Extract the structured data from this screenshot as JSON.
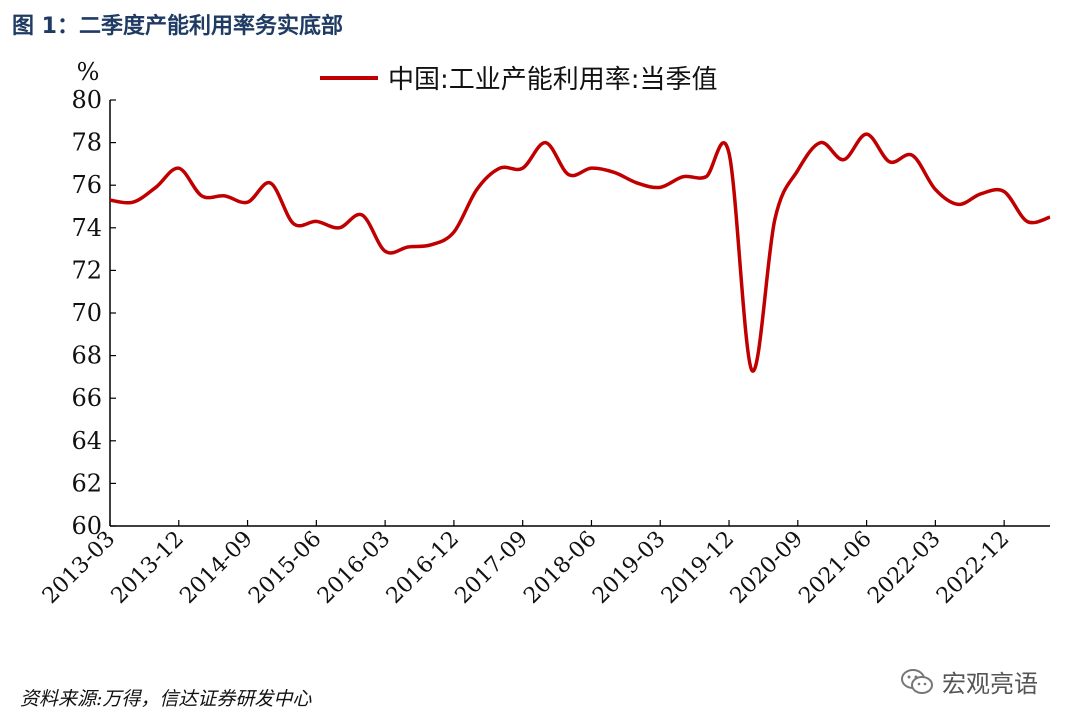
{
  "figure": {
    "title": "图 1：二季度产能利用率务实底部",
    "source": "资料来源:万得，信达证券研发中心",
    "watermark": "宏观亮语",
    "watermark_icon": "wechat-icon"
  },
  "chart_data": {
    "type": "line",
    "title": "",
    "xlabel": "",
    "ylabel": "%",
    "ylim": [
      60,
      80
    ],
    "yticks": [
      60,
      62,
      64,
      66,
      68,
      70,
      72,
      74,
      76,
      78,
      80
    ],
    "x": [
      "2013-03",
      "2013-06",
      "2013-09",
      "2013-12",
      "2014-03",
      "2014-06",
      "2014-09",
      "2014-12",
      "2015-03",
      "2015-06",
      "2015-09",
      "2015-12",
      "2016-03",
      "2016-06",
      "2016-09",
      "2016-12",
      "2017-03",
      "2017-06",
      "2017-09",
      "2017-12",
      "2018-03",
      "2018-06",
      "2018-09",
      "2018-12",
      "2019-03",
      "2019-06",
      "2019-09",
      "2019-12",
      "2020-03",
      "2020-06",
      "2020-09",
      "2020-12",
      "2021-03",
      "2021-06",
      "2021-09",
      "2021-12",
      "2022-03",
      "2022-06",
      "2022-09",
      "2022-12",
      "2023-03",
      "2023-06"
    ],
    "xtick_labels": [
      "2013-03",
      "2013-12",
      "2014-09",
      "2015-06",
      "2016-03",
      "2016-12",
      "2017-09",
      "2018-06",
      "2019-03",
      "2019-12",
      "2020-09",
      "2021-06",
      "2022-03",
      "2022-12"
    ],
    "grid": false,
    "legend_position": "top-center",
    "series": [
      {
        "name": "中国:工业产能利用率:当季值",
        "color": "#c00000",
        "values": [
          75.3,
          75.2,
          75.9,
          76.8,
          75.5,
          75.5,
          75.2,
          76.1,
          74.2,
          74.3,
          74.0,
          74.6,
          72.9,
          73.1,
          73.2,
          73.8,
          75.8,
          76.8,
          76.8,
          78.0,
          76.5,
          76.8,
          76.6,
          76.1,
          75.9,
          76.4,
          76.4,
          77.5,
          67.3,
          74.4,
          76.7,
          78.0,
          77.2,
          78.4,
          77.1,
          77.4,
          75.8,
          75.1,
          75.6,
          75.7,
          74.3,
          74.5
        ]
      }
    ]
  }
}
